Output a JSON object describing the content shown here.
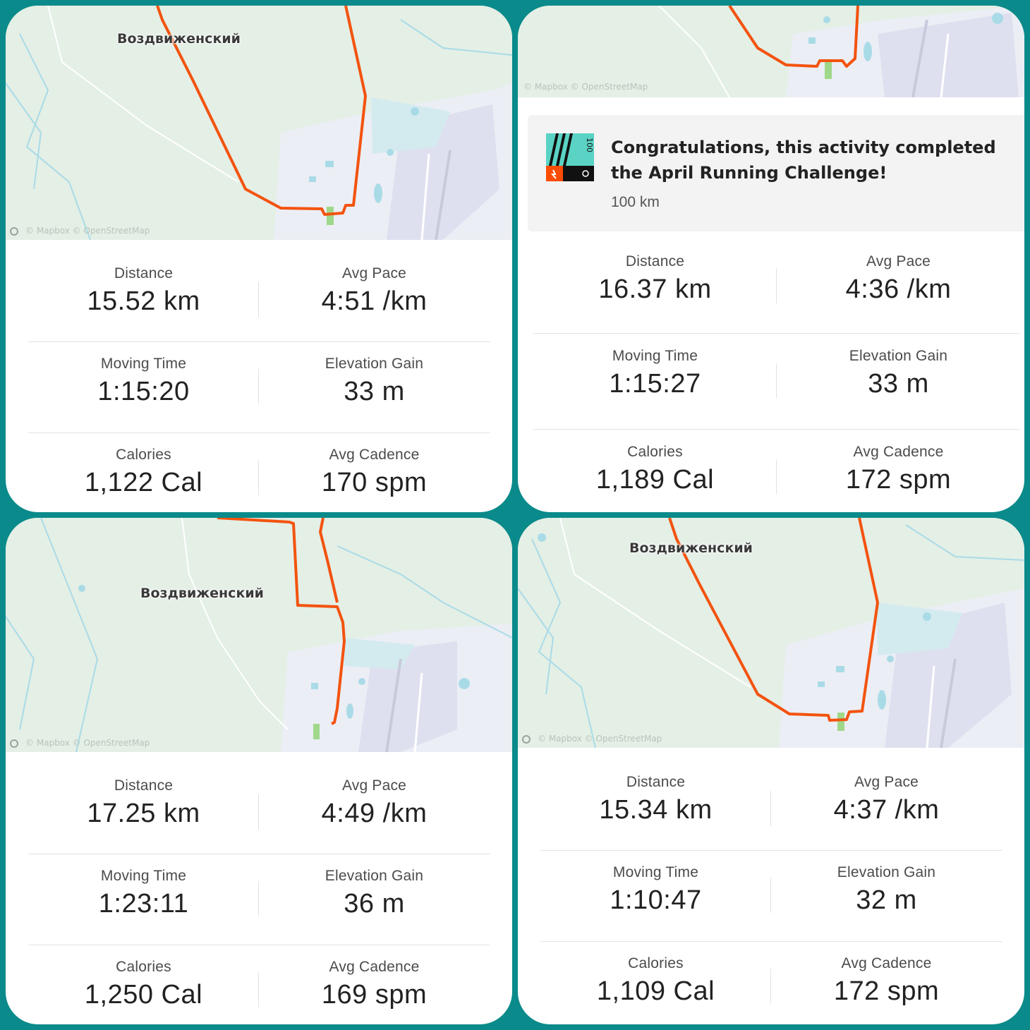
{
  "colors": {
    "background": "#0a8a8a",
    "route": "#f3530f",
    "map_land": "#e4efe6",
    "water": "#a9dbe7",
    "badge_teal": "#5ad3c4",
    "badge_orange": "#fc4c02"
  },
  "activities": [
    {
      "map": {
        "place_label": "Воздвиженский",
        "attribution": "© Mapbox © OpenStreetMap"
      },
      "stats": {
        "distance_label": "Distance",
        "distance": "15.52 km",
        "pace_label": "Avg Pace",
        "pace": "4:51 /km",
        "moving_time_label": "Moving Time",
        "moving_time": "1:15:20",
        "elevation_label": "Elevation Gain",
        "elevation": "33 m",
        "calories_label": "Calories",
        "calories": "1,122 Cal",
        "cadence_label": "Avg Cadence",
        "cadence": "170 spm"
      }
    },
    {
      "map": {
        "place_label": "",
        "attribution": "© Mapbox © OpenStreetMap"
      },
      "challenge": {
        "title": "Congratulations, this activity completed the April Running Challenge!",
        "subtitle": "100 km",
        "badge_icon": "challenge-badge-100km"
      },
      "stats": {
        "distance_label": "Distance",
        "distance": "16.37 km",
        "pace_label": "Avg Pace",
        "pace": "4:36 /km",
        "moving_time_label": "Moving Time",
        "moving_time": "1:15:27",
        "elevation_label": "Elevation Gain",
        "elevation": "33 m",
        "calories_label": "Calories",
        "calories": "1,189 Cal",
        "cadence_label": "Avg Cadence",
        "cadence": "172 spm"
      }
    },
    {
      "map": {
        "place_label": "Воздвиженский",
        "attribution": "© Mapbox © OpenStreetMap"
      },
      "stats": {
        "distance_label": "Distance",
        "distance": "17.25 km",
        "pace_label": "Avg Pace",
        "pace": "4:49 /km",
        "moving_time_label": "Moving Time",
        "moving_time": "1:23:11",
        "elevation_label": "Elevation Gain",
        "elevation": "36 m",
        "calories_label": "Calories",
        "calories": "1,250 Cal",
        "cadence_label": "Avg Cadence",
        "cadence": "169 spm"
      }
    },
    {
      "map": {
        "place_label": "Воздвиженский",
        "attribution": "© Mapbox © OpenStreetMap"
      },
      "stats": {
        "distance_label": "Distance",
        "distance": "15.34 km",
        "pace_label": "Avg Pace",
        "pace": "4:37 /km",
        "moving_time_label": "Moving Time",
        "moving_time": "1:10:47",
        "elevation_label": "Elevation Gain",
        "elevation": "32 m",
        "calories_label": "Calories",
        "calories": "1,109 Cal",
        "cadence_label": "Avg Cadence",
        "cadence": "172 spm"
      }
    }
  ]
}
